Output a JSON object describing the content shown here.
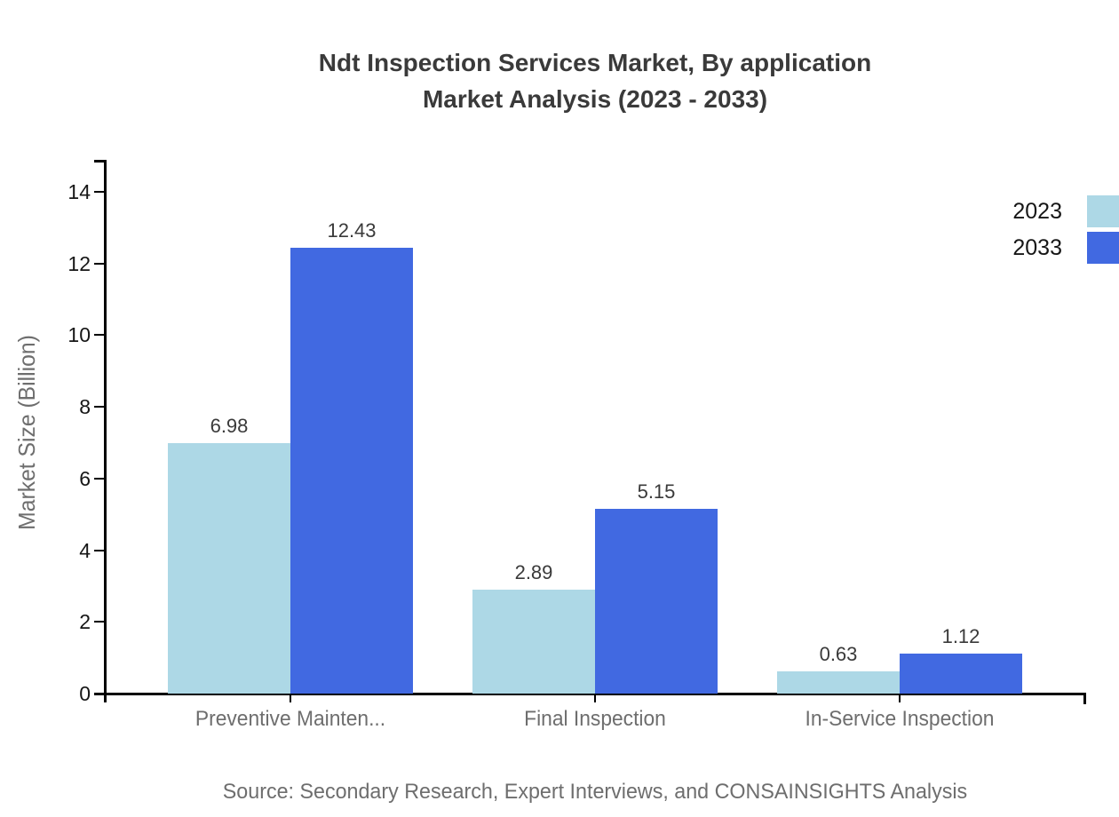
{
  "title": {
    "line1": "Ndt Inspection Services Market, By application",
    "line2": "Market Analysis (2023 - 2033)"
  },
  "source": "Source: Secondary Research, Expert Interviews, and CONSAINSIGHTS Analysis",
  "chart_data": {
    "type": "bar",
    "title": "Ndt Inspection Services Market, By application Market Analysis (2023 - 2033)",
    "categories": [
      "Preventive Mainten...",
      "Final Inspection",
      "In-Service Inspection"
    ],
    "series": [
      {
        "name": "2023",
        "color": "#ADD8E6",
        "values": [
          6.98,
          2.89,
          0.63
        ]
      },
      {
        "name": "2033",
        "color": "#4169E1",
        "values": [
          12.43,
          5.15,
          1.12
        ]
      }
    ],
    "xlabel": "",
    "ylabel": "Market Size (Billion)",
    "ylim": [
      0,
      15
    ],
    "yticks": [
      0,
      2,
      4,
      6,
      8,
      10,
      12,
      14
    ],
    "grid": false,
    "legend_position": "top-right",
    "value_labels": true,
    "value_label_format": "2-decimals"
  },
  "colors": {
    "axis": "#000000",
    "title_text": "#3a3a3a",
    "muted_text": "#6e6e6e",
    "tick_text": "#161616"
  }
}
